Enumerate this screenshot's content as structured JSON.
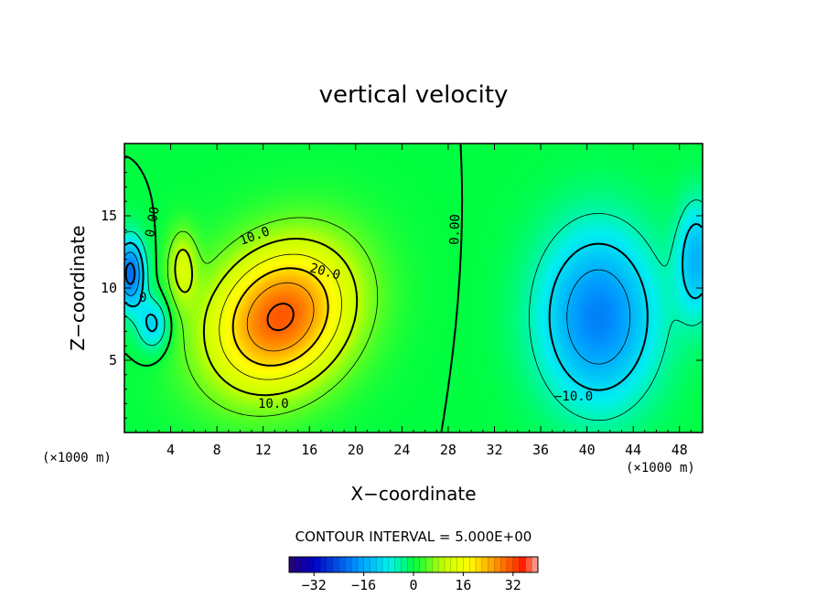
{
  "chart_data": {
    "type": "heatmap",
    "title": "vertical velocity",
    "xlabel": "X−coordinate",
    "ylabel": "Z−coordinate",
    "x_unit": "(×1000 m)",
    "x_unit_right": "(×1000 m)",
    "xlim": [
      0,
      50
    ],
    "ylim": [
      0,
      20
    ],
    "x_ticks": [
      4,
      8,
      12,
      16,
      20,
      24,
      28,
      32,
      36,
      40,
      44,
      48
    ],
    "y_ticks": [
      5,
      10,
      15
    ],
    "contour_interval_text": "CONTOUR INTERVAL = 5.000E+00",
    "contour_interval": 5.0,
    "colorbar": {
      "range": [
        -40,
        40
      ],
      "ticks": [
        -32,
        -16,
        0,
        16,
        32
      ],
      "tick_labels": [
        "−32",
        "−16",
        "0",
        "16",
        "32"
      ]
    },
    "contour_labels": [
      "0.00",
      "10.0",
      "20.0",
      "0.00",
      "10.0",
      "−10.0",
      "0"
    ],
    "field_features": [
      {
        "kind": "updraft",
        "x": 13.5,
        "z": 8.0,
        "peak": 31
      },
      {
        "kind": "downdraft",
        "x": 41.0,
        "z": 8.0,
        "peak": -20
      },
      {
        "kind": "downdraft",
        "x": 0.5,
        "z": 11.0,
        "peak": -22
      },
      {
        "kind": "downdraft",
        "x": 2.5,
        "z": 7.5,
        "peak": -12
      },
      {
        "kind": "downdraft",
        "x": 49.5,
        "z": 12.0,
        "peak": -14
      },
      {
        "kind": "updraft",
        "x": 5.0,
        "z": 11.5,
        "peak": 11
      }
    ]
  }
}
